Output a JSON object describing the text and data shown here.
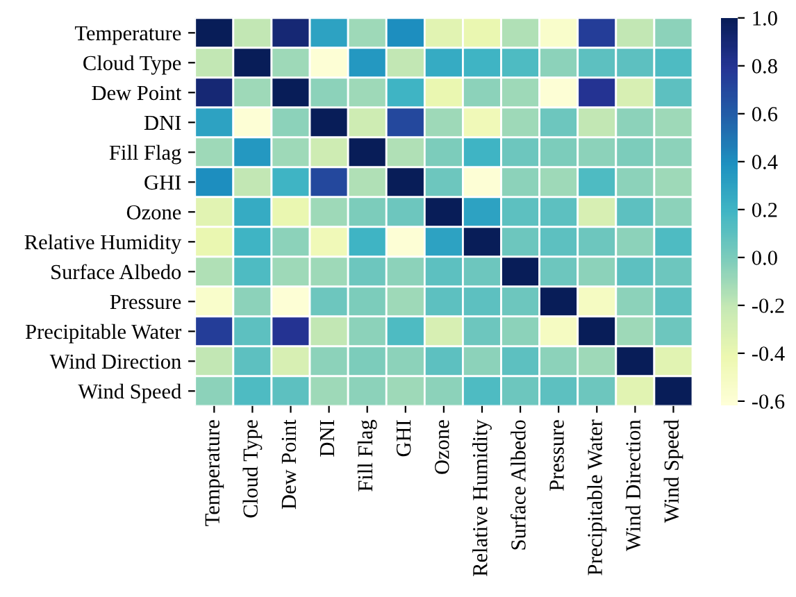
{
  "chart_data": {
    "type": "heatmap",
    "categories": [
      "Temperature",
      "Cloud Type",
      "Dew Point",
      "DNI",
      "Fill Flag",
      "GHI",
      "Ozone",
      "Relative Humidity",
      "Surface Albedo",
      "Pressure",
      "Precipitable Water",
      "Wind Direction",
      "Wind Speed"
    ],
    "y_categories": [
      "Temperature",
      "Cloud Type",
      "Dew Point",
      "DNI",
      "Fill Flag",
      "GHI",
      "Ozone",
      "Relative Humidity",
      "Surface Albedo",
      "Pressure",
      "Precipitable Water",
      "Wind Direction",
      "Wind Speed"
    ],
    "cells": [
      [
        1,
        -0.2,
        0.9,
        0.3,
        -0.1,
        0.4,
        -0.35,
        -0.4,
        -0.15,
        -0.55,
        0.75,
        -0.2,
        -0.05
      ],
      [
        -0.2,
        1,
        -0.1,
        -0.6,
        0.35,
        -0.2,
        0.25,
        0.2,
        0.15,
        -0.05,
        0.1,
        0.1,
        0.15
      ],
      [
        0.9,
        -0.1,
        1,
        -0.05,
        -0.1,
        0.2,
        -0.4,
        -0.05,
        -0.1,
        -0.6,
        0.8,
        -0.3,
        0.1
      ],
      [
        0.3,
        -0.6,
        -0.05,
        1,
        -0.25,
        0.7,
        -0.1,
        -0.45,
        -0.1,
        0.05,
        -0.2,
        -0.05,
        -0.1
      ],
      [
        -0.1,
        0.35,
        -0.1,
        -0.25,
        1,
        -0.15,
        0.0,
        0.2,
        0.05,
        0.0,
        -0.05,
        0.0,
        -0.05
      ],
      [
        0.4,
        -0.2,
        0.2,
        0.7,
        -0.15,
        1,
        0.05,
        -0.6,
        -0.05,
        -0.1,
        0.15,
        -0.05,
        -0.1
      ],
      [
        -0.35,
        0.25,
        -0.4,
        -0.1,
        0.0,
        0.05,
        1,
        0.3,
        0.1,
        0.1,
        -0.3,
        0.1,
        -0.05
      ],
      [
        -0.4,
        0.2,
        -0.05,
        -0.45,
        0.2,
        -0.6,
        0.3,
        1,
        0.05,
        0.1,
        0.05,
        -0.05,
        0.15
      ],
      [
        -0.15,
        0.15,
        -0.1,
        -0.1,
        0.05,
        -0.05,
        0.1,
        0.05,
        1,
        0.05,
        -0.05,
        0.1,
        0.05
      ],
      [
        -0.55,
        -0.05,
        -0.6,
        0.05,
        0.0,
        -0.1,
        0.1,
        0.1,
        0.05,
        1,
        -0.5,
        -0.05,
        0.1
      ],
      [
        0.75,
        0.1,
        0.8,
        -0.2,
        -0.05,
        0.15,
        -0.3,
        0.05,
        -0.05,
        -0.5,
        1,
        -0.1,
        0.05
      ],
      [
        -0.2,
        0.1,
        -0.3,
        -0.05,
        0.0,
        -0.05,
        0.1,
        -0.05,
        0.1,
        -0.05,
        -0.1,
        1,
        -0.35
      ],
      [
        -0.05,
        0.15,
        0.1,
        -0.1,
        -0.05,
        -0.1,
        -0.05,
        0.15,
        0.05,
        0.1,
        0.05,
        -0.35,
        1
      ]
    ],
    "clim": [
      -0.62,
      1.0
    ],
    "cticks": [
      {
        "value": -0.6,
        "label": "-0.6"
      },
      {
        "value": -0.4,
        "label": "-0.4"
      },
      {
        "value": -0.2,
        "label": "-0.2"
      },
      {
        "value": 0.0,
        "label": "0.0"
      },
      {
        "value": 0.2,
        "label": "0.2"
      },
      {
        "value": 0.4,
        "label": "0.4"
      },
      {
        "value": 0.6,
        "label": "0.6"
      },
      {
        "value": 0.8,
        "label": "0.8"
      },
      {
        "value": 1.0,
        "label": "1.0"
      }
    ]
  }
}
